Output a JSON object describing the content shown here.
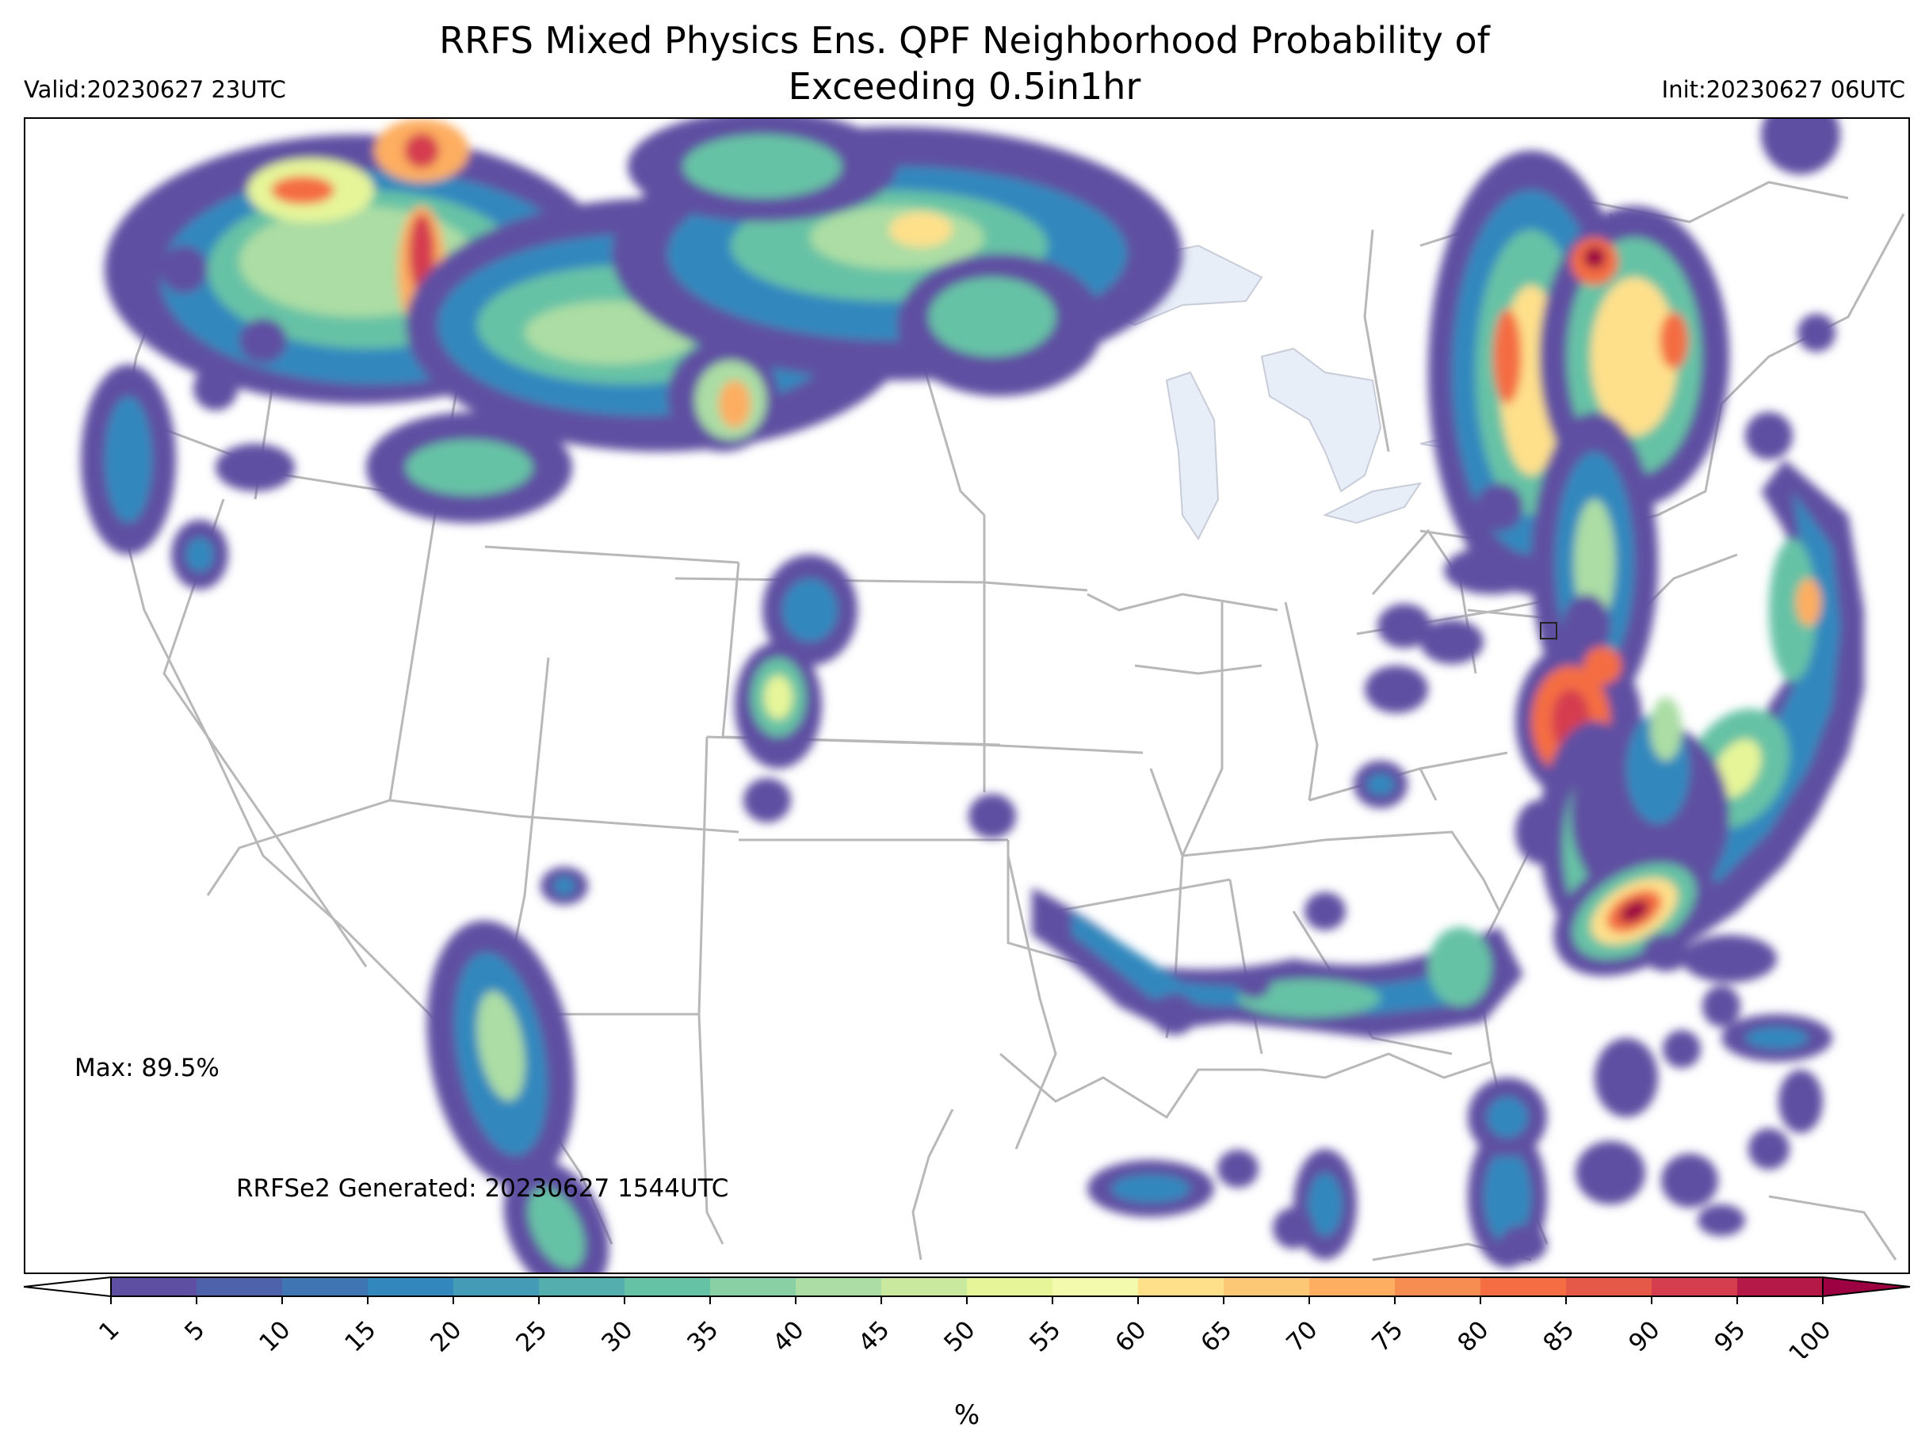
{
  "header": {
    "title_line1": "RRFS Mixed Physics Ens. QPF Neighborhood Probability of",
    "title_line2": "Exceeding 0.5in1hr",
    "valid": "Valid:20230627 23UTC",
    "init": "Init:20230627 06UTC"
  },
  "annotations": {
    "max": "Max: 89.5%",
    "generated": "RRFSe2 Generated: 20230627 1544UTC"
  },
  "colorbar": {
    "ticks": [
      "1",
      "5",
      "10",
      "15",
      "20",
      "25",
      "30",
      "35",
      "40",
      "45",
      "50",
      "55",
      "60",
      "65",
      "70",
      "75",
      "80",
      "85",
      "90",
      "95",
      "100"
    ],
    "unit": "%",
    "colors": [
      "#5e4fa2",
      "#4e62ab",
      "#4075b4",
      "#3288bd",
      "#439bb5",
      "#54aead",
      "#66c2a5",
      "#89d0a4",
      "#abdda4",
      "#c9e99e",
      "#e6f598",
      "#f3faad",
      "#fee08b",
      "#fdc875",
      "#fdae61",
      "#f88d52",
      "#f46d43",
      "#e45948",
      "#d53e4f",
      "#b51947",
      "#9e0142"
    ]
  },
  "map": {
    "lake_color": "#e8eef8",
    "border_color": "#b8b8b8"
  }
}
